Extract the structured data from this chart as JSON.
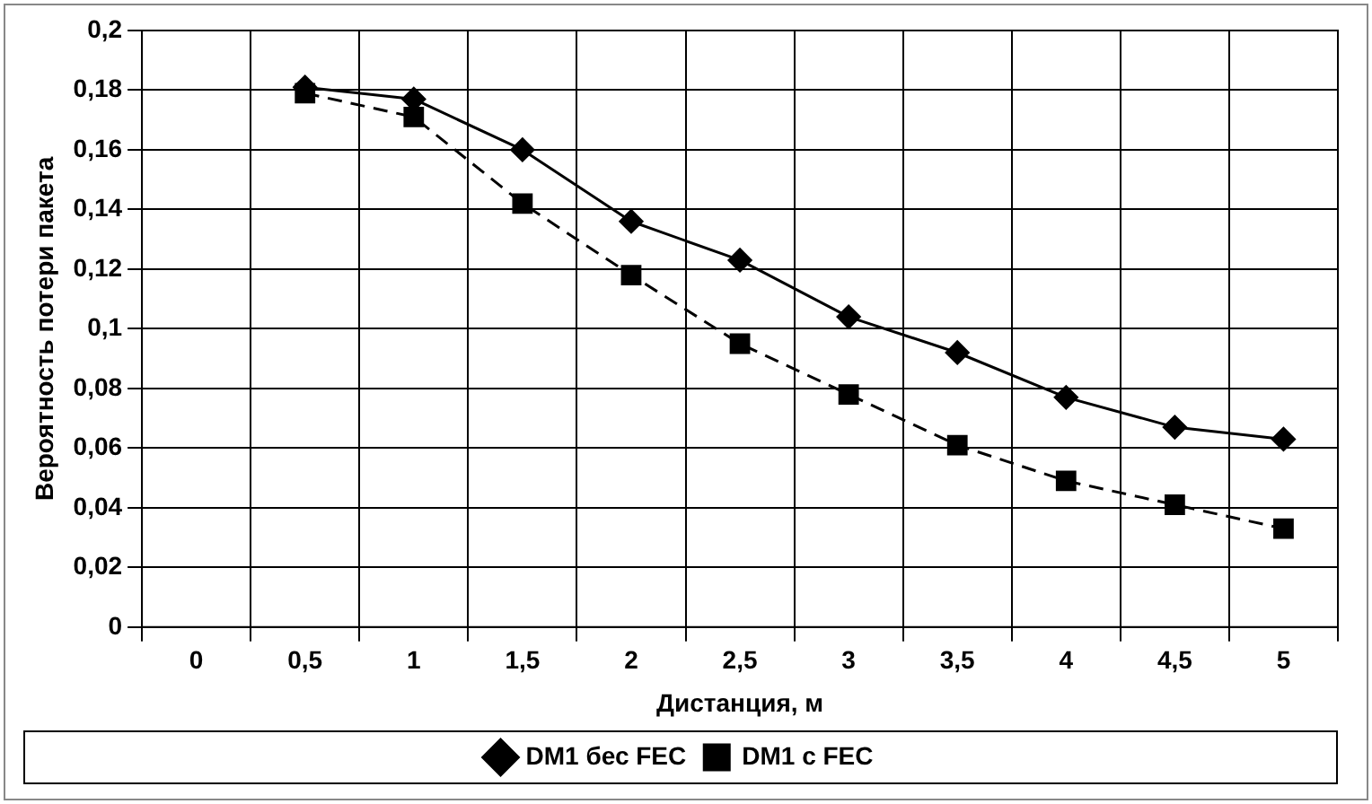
{
  "chart_data": {
    "type": "line",
    "xlabel": "Дистанция, м",
    "ylabel": "Вероятность потери пакета",
    "categories": [
      "0",
      "0,5",
      "1",
      "1,5",
      "2",
      "2,5",
      "3",
      "3,5",
      "4",
      "4,5",
      "5"
    ],
    "series": [
      {
        "name": "DM1 бес FEC",
        "color": "#000000",
        "marker": "diamond",
        "line_style": "solid",
        "values": [
          null,
          0.181,
          0.177,
          0.16,
          0.136,
          0.123,
          0.104,
          0.092,
          0.077,
          0.067,
          0.063
        ]
      },
      {
        "name": "DM1 с FEC",
        "color": "#000000",
        "marker": "square",
        "line_style": "dashed",
        "values": [
          null,
          0.179,
          0.171,
          0.142,
          0.118,
          0.095,
          0.078,
          0.061,
          0.049,
          0.041,
          0.033
        ]
      }
    ],
    "ylim": [
      0,
      0.2
    ],
    "yticks": [
      {
        "value": 0,
        "label": "0"
      },
      {
        "value": 0.02,
        "label": "0,02"
      },
      {
        "value": 0.04,
        "label": "0,04"
      },
      {
        "value": 0.06,
        "label": "0,06"
      },
      {
        "value": 0.08,
        "label": "0,08"
      },
      {
        "value": 0.1,
        "label": "0,1"
      },
      {
        "value": 0.12,
        "label": "0,12"
      },
      {
        "value": 0.14,
        "label": "0,14"
      },
      {
        "value": 0.16,
        "label": "0,16"
      },
      {
        "value": 0.18,
        "label": "0,18"
      },
      {
        "value": 0.2,
        "label": "0,2"
      }
    ],
    "grid": true,
    "legend": "bottom"
  }
}
